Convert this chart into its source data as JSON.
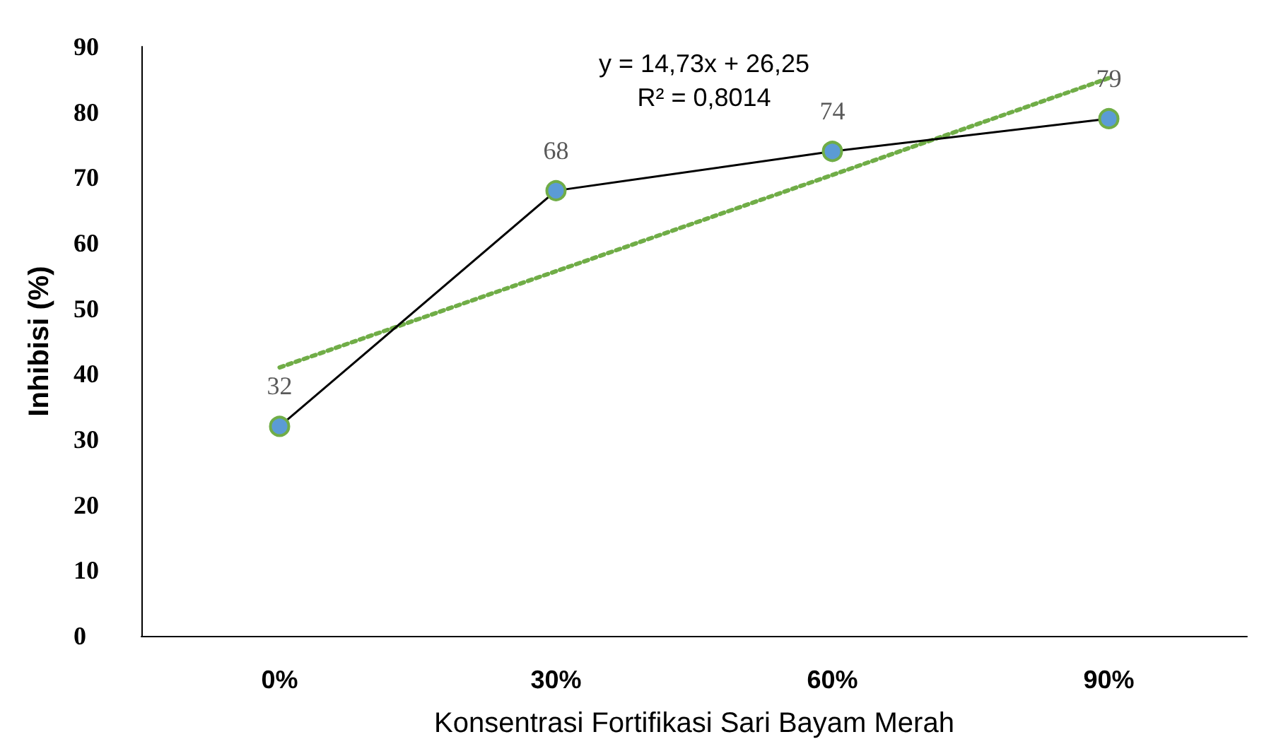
{
  "chart_data": {
    "type": "line",
    "xlabel": "Konsentrasi Fortifikasi Sari Bayam Merah",
    "ylabel": "Inhibisi (%)",
    "categories": [
      "0%",
      "30%",
      "60%",
      "90%"
    ],
    "series": [
      {
        "color": "#000000",
        "values": [
          32,
          68,
          74,
          79
        ],
        "value_labels": [
          "32",
          "68",
          "74",
          "79"
        ],
        "marker": "circle",
        "line_style": "solid"
      },
      {
        "color": "#70ad47",
        "x": [
          "0%",
          "30%",
          "60%",
          "90%"
        ],
        "values": [
          41,
          55.7,
          70.4,
          85.2
        ],
        "marker": "none",
        "line_style": "dotted"
      }
    ],
    "ylim": [
      0,
      90
    ],
    "yticks": [
      0,
      10,
      20,
      30,
      40,
      50,
      60,
      70,
      80,
      90
    ],
    "grid": false,
    "annotations": [
      "y = 14,73x + 26,25",
      "R² = 0,8014"
    ]
  }
}
